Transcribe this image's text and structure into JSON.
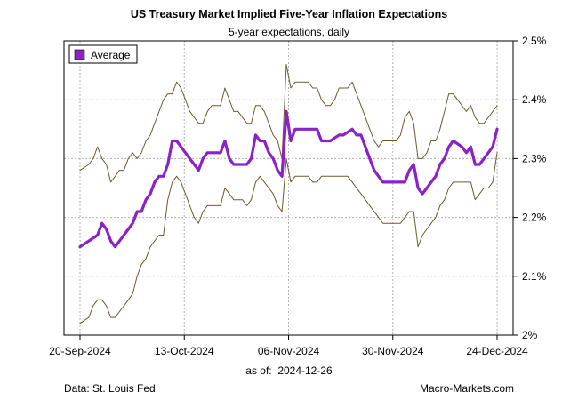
{
  "chart_data": {
    "type": "line",
    "title": "US Treasury Market Implied Five-Year Inflation Expectations",
    "subtitle": "5-year expectations, daily",
    "as_of_label": "as of:",
    "as_of_date": "2024-12-26",
    "source": "Data: St. Louis Fed",
    "brand": "Macro-Markets.com",
    "legend": {
      "label": "Average",
      "color": "#8b22c8",
      "position": "top-left"
    },
    "x_ticks": [
      "20-Sep-2024",
      "13-Oct-2024",
      "06-Nov-2024",
      "30-Nov-2024",
      "24-Dec-2024"
    ],
    "x_range": [
      0,
      95
    ],
    "y_ticks": [
      "2%",
      "2.1%",
      "2.2%",
      "2.3%",
      "2.4%",
      "2.5%"
    ],
    "y_tick_values": [
      2.0,
      2.1,
      2.2,
      2.3,
      2.4,
      2.5
    ],
    "ylim": [
      2.0,
      2.5
    ],
    "grid": true,
    "series": [
      {
        "name": "Average",
        "color": "#8b22c8",
        "points": [
          [
            0,
            2.15
          ],
          [
            2,
            2.16
          ],
          [
            3,
            2.165
          ],
          [
            4,
            2.17
          ],
          [
            5,
            2.19
          ],
          [
            6,
            2.18
          ],
          [
            7,
            2.16
          ],
          [
            8,
            2.15
          ],
          [
            9,
            2.16
          ],
          [
            10,
            2.17
          ],
          [
            11,
            2.18
          ],
          [
            12,
            2.19
          ],
          [
            13,
            2.21
          ],
          [
            14,
            2.21
          ],
          [
            15,
            2.23
          ],
          [
            16,
            2.24
          ],
          [
            17,
            2.26
          ],
          [
            18,
            2.27
          ],
          [
            19,
            2.27
          ],
          [
            20,
            2.29
          ],
          [
            21,
            2.33
          ],
          [
            22,
            2.33
          ],
          [
            23,
            2.32
          ],
          [
            24,
            2.31
          ],
          [
            25,
            2.3
          ],
          [
            26,
            2.29
          ],
          [
            27,
            2.28
          ],
          [
            28,
            2.3
          ],
          [
            29,
            2.31
          ],
          [
            30,
            2.31
          ],
          [
            31,
            2.31
          ],
          [
            32,
            2.31
          ],
          [
            33,
            2.33
          ],
          [
            34,
            2.3
          ],
          [
            35,
            2.29
          ],
          [
            36,
            2.29
          ],
          [
            37,
            2.29
          ],
          [
            38,
            2.29
          ],
          [
            39,
            2.3
          ],
          [
            40,
            2.34
          ],
          [
            41,
            2.33
          ],
          [
            42,
            2.33
          ],
          [
            43,
            2.31
          ],
          [
            44,
            2.3
          ],
          [
            45,
            2.28
          ],
          [
            46,
            2.27
          ],
          [
            47,
            2.38
          ],
          [
            48,
            2.33
          ],
          [
            49,
            2.35
          ],
          [
            50,
            2.35
          ],
          [
            51,
            2.35
          ],
          [
            52,
            2.35
          ],
          [
            53,
            2.35
          ],
          [
            54,
            2.35
          ],
          [
            55,
            2.33
          ],
          [
            56,
            2.33
          ],
          [
            57,
            2.33
          ],
          [
            58,
            2.335
          ],
          [
            59,
            2.34
          ],
          [
            60,
            2.34
          ],
          [
            61,
            2.345
          ],
          [
            62,
            2.35
          ],
          [
            63,
            2.34
          ],
          [
            64,
            2.34
          ],
          [
            65,
            2.32
          ],
          [
            66,
            2.3
          ],
          [
            67,
            2.28
          ],
          [
            68,
            2.27
          ],
          [
            69,
            2.26
          ],
          [
            70,
            2.26
          ],
          [
            71,
            2.26
          ],
          [
            72,
            2.26
          ],
          [
            73,
            2.26
          ],
          [
            74,
            2.26
          ],
          [
            75,
            2.28
          ],
          [
            76,
            2.29
          ],
          [
            77,
            2.25
          ],
          [
            78,
            2.24
          ],
          [
            79,
            2.25
          ],
          [
            80,
            2.26
          ],
          [
            81,
            2.27
          ],
          [
            82,
            2.29
          ],
          [
            83,
            2.3
          ],
          [
            84,
            2.32
          ],
          [
            85,
            2.33
          ],
          [
            86,
            2.325
          ],
          [
            87,
            2.32
          ],
          [
            88,
            2.31
          ],
          [
            89,
            2.32
          ],
          [
            90,
            2.29
          ],
          [
            91,
            2.29
          ],
          [
            92,
            2.3
          ],
          [
            93,
            2.31
          ],
          [
            94,
            2.32
          ],
          [
            95,
            2.35
          ]
        ]
      },
      {
        "name": "Upper band",
        "color": "#6b5a2c",
        "points": [
          [
            0,
            2.28
          ],
          [
            2,
            2.29
          ],
          [
            3,
            2.3
          ],
          [
            4,
            2.32
          ],
          [
            5,
            2.3
          ],
          [
            6,
            2.29
          ],
          [
            7,
            2.26
          ],
          [
            8,
            2.27
          ],
          [
            9,
            2.28
          ],
          [
            10,
            2.28
          ],
          [
            11,
            2.3
          ],
          [
            12,
            2.31
          ],
          [
            13,
            2.3
          ],
          [
            14,
            2.31
          ],
          [
            15,
            2.33
          ],
          [
            16,
            2.34
          ],
          [
            17,
            2.36
          ],
          [
            18,
            2.38
          ],
          [
            19,
            2.4
          ],
          [
            20,
            2.41
          ],
          [
            21,
            2.41
          ],
          [
            22,
            2.43
          ],
          [
            23,
            2.42
          ],
          [
            24,
            2.4
          ],
          [
            25,
            2.38
          ],
          [
            26,
            2.37
          ],
          [
            27,
            2.36
          ],
          [
            28,
            2.36
          ],
          [
            29,
            2.38
          ],
          [
            30,
            2.39
          ],
          [
            31,
            2.39
          ],
          [
            32,
            2.39
          ],
          [
            33,
            2.42
          ],
          [
            34,
            2.4
          ],
          [
            35,
            2.38
          ],
          [
            36,
            2.38
          ],
          [
            37,
            2.37
          ],
          [
            38,
            2.36
          ],
          [
            39,
            2.36
          ],
          [
            40,
            2.39
          ],
          [
            41,
            2.39
          ],
          [
            42,
            2.38
          ],
          [
            43,
            2.36
          ],
          [
            44,
            2.34
          ],
          [
            45,
            2.33
          ],
          [
            46,
            2.3
          ],
          [
            47,
            2.46
          ],
          [
            48,
            2.42
          ],
          [
            49,
            2.43
          ],
          [
            50,
            2.43
          ],
          [
            51,
            2.43
          ],
          [
            52,
            2.43
          ],
          [
            53,
            2.42
          ],
          [
            54,
            2.42
          ],
          [
            55,
            2.4
          ],
          [
            56,
            2.39
          ],
          [
            57,
            2.39
          ],
          [
            58,
            2.4
          ],
          [
            59,
            2.42
          ],
          [
            60,
            2.42
          ],
          [
            61,
            2.42
          ],
          [
            62,
            2.43
          ],
          [
            63,
            2.41
          ],
          [
            64,
            2.39
          ],
          [
            65,
            2.37
          ],
          [
            66,
            2.35
          ],
          [
            67,
            2.33
          ],
          [
            68,
            2.32
          ],
          [
            69,
            2.33
          ],
          [
            70,
            2.33
          ],
          [
            71,
            2.33
          ],
          [
            72,
            2.33
          ],
          [
            73,
            2.34
          ],
          [
            74,
            2.37
          ],
          [
            75,
            2.38
          ],
          [
            76,
            2.36
          ],
          [
            77,
            2.3
          ],
          [
            78,
            2.3
          ],
          [
            79,
            2.31
          ],
          [
            80,
            2.33
          ],
          [
            81,
            2.33
          ],
          [
            82,
            2.35
          ],
          [
            83,
            2.38
          ],
          [
            84,
            2.41
          ],
          [
            85,
            2.41
          ],
          [
            86,
            2.4
          ],
          [
            87,
            2.39
          ],
          [
            88,
            2.38
          ],
          [
            89,
            2.39
          ],
          [
            90,
            2.37
          ],
          [
            91,
            2.36
          ],
          [
            92,
            2.36
          ],
          [
            93,
            2.37
          ],
          [
            94,
            2.38
          ],
          [
            95,
            2.39
          ]
        ]
      },
      {
        "name": "Lower band",
        "color": "#6b5a2c",
        "points": [
          [
            0,
            2.02
          ],
          [
            2,
            2.03
          ],
          [
            3,
            2.05
          ],
          [
            4,
            2.06
          ],
          [
            5,
            2.06
          ],
          [
            6,
            2.05
          ],
          [
            7,
            2.03
          ],
          [
            8,
            2.03
          ],
          [
            9,
            2.04
          ],
          [
            10,
            2.05
          ],
          [
            11,
            2.06
          ],
          [
            12,
            2.07
          ],
          [
            13,
            2.1
          ],
          [
            14,
            2.12
          ],
          [
            15,
            2.13
          ],
          [
            16,
            2.15
          ],
          [
            17,
            2.16
          ],
          [
            18,
            2.17
          ],
          [
            19,
            2.17
          ],
          [
            20,
            2.23
          ],
          [
            21,
            2.26
          ],
          [
            22,
            2.27
          ],
          [
            23,
            2.26
          ],
          [
            24,
            2.24
          ],
          [
            25,
            2.22
          ],
          [
            26,
            2.2
          ],
          [
            27,
            2.19
          ],
          [
            28,
            2.21
          ],
          [
            29,
            2.22
          ],
          [
            30,
            2.22
          ],
          [
            31,
            2.22
          ],
          [
            32,
            2.22
          ],
          [
            33,
            2.25
          ],
          [
            34,
            2.24
          ],
          [
            35,
            2.23
          ],
          [
            36,
            2.23
          ],
          [
            37,
            2.23
          ],
          [
            38,
            2.22
          ],
          [
            39,
            2.23
          ],
          [
            40,
            2.26
          ],
          [
            41,
            2.27
          ],
          [
            42,
            2.26
          ],
          [
            43,
            2.25
          ],
          [
            44,
            2.24
          ],
          [
            45,
            2.22
          ],
          [
            46,
            2.21
          ],
          [
            47,
            2.3
          ],
          [
            48,
            2.26
          ],
          [
            49,
            2.27
          ],
          [
            50,
            2.27
          ],
          [
            51,
            2.27
          ],
          [
            52,
            2.27
          ],
          [
            53,
            2.26
          ],
          [
            54,
            2.26
          ],
          [
            55,
            2.27
          ],
          [
            56,
            2.27
          ],
          [
            57,
            2.27
          ],
          [
            58,
            2.27
          ],
          [
            59,
            2.27
          ],
          [
            60,
            2.27
          ],
          [
            61,
            2.27
          ],
          [
            62,
            2.26
          ],
          [
            63,
            2.25
          ],
          [
            64,
            2.24
          ],
          [
            65,
            2.23
          ],
          [
            66,
            2.22
          ],
          [
            67,
            2.21
          ],
          [
            68,
            2.2
          ],
          [
            69,
            2.19
          ],
          [
            70,
            2.19
          ],
          [
            71,
            2.19
          ],
          [
            72,
            2.19
          ],
          [
            73,
            2.19
          ],
          [
            74,
            2.2
          ],
          [
            75,
            2.21
          ],
          [
            76,
            2.21
          ],
          [
            77,
            2.15
          ],
          [
            78,
            2.17
          ],
          [
            79,
            2.18
          ],
          [
            80,
            2.19
          ],
          [
            81,
            2.2
          ],
          [
            82,
            2.22
          ],
          [
            83,
            2.23
          ],
          [
            84,
            2.25
          ],
          [
            85,
            2.26
          ],
          [
            86,
            2.26
          ],
          [
            87,
            2.26
          ],
          [
            88,
            2.26
          ],
          [
            89,
            2.26
          ],
          [
            90,
            2.23
          ],
          [
            91,
            2.24
          ],
          [
            92,
            2.25
          ],
          [
            93,
            2.25
          ],
          [
            94,
            2.26
          ],
          [
            95,
            2.31
          ]
        ]
      }
    ]
  }
}
